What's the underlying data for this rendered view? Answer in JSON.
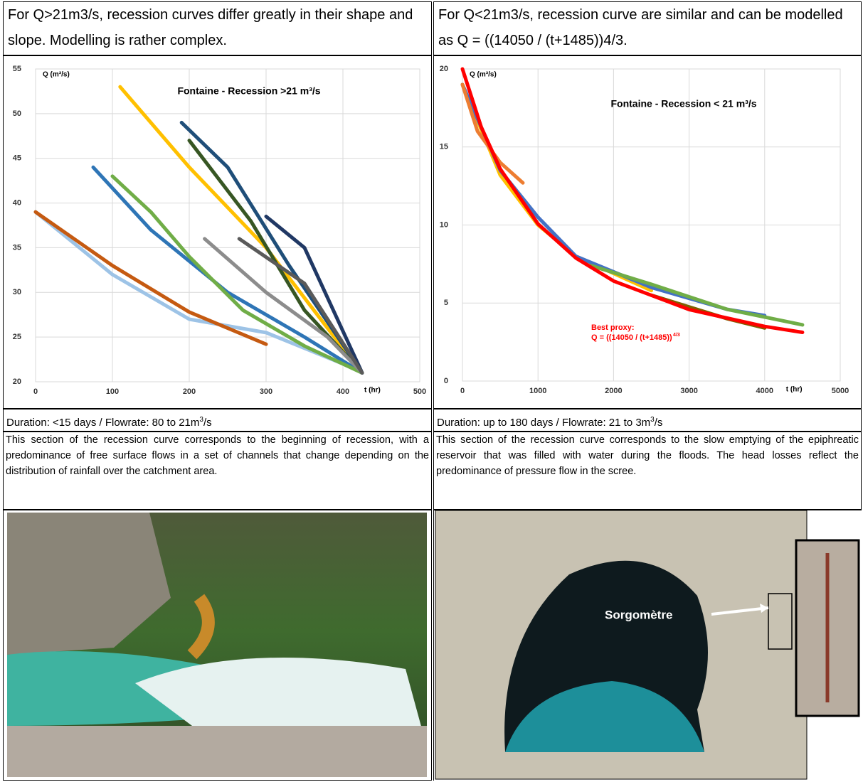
{
  "header": {
    "left": "For Q>21m3/s, recession curves differ greatly in their shape and slope. Modelling is rather complex.",
    "right": "For Q<21m3/s, recession curve are similar and can be modelled as Q = ((14050 / (t+1485))4/3."
  },
  "chart_data": [
    {
      "type": "line",
      "title": "Fontaine -  Recession >21 m³/s",
      "y_label": "Q (m³/s)",
      "x_label": "t (hr)",
      "xlim": [
        0,
        500
      ],
      "xticks": [
        0,
        100,
        200,
        300,
        400,
        500
      ],
      "ylim": [
        20,
        55
      ],
      "yticks": [
        20,
        25,
        30,
        35,
        40,
        45,
        50,
        55
      ],
      "grid": true,
      "series": [
        {
          "color": "#9dc3e6",
          "x": [
            0,
            100,
            200,
            300,
            400,
            425
          ],
          "values": [
            39,
            32,
            27,
            25.5,
            22,
            21
          ]
        },
        {
          "color": "#c55a11",
          "x": [
            0,
            100,
            200,
            300
          ],
          "values": [
            39,
            33,
            27.8,
            24.2
          ]
        },
        {
          "color": "#2e75b6",
          "x": [
            75,
            150,
            250,
            350,
            425
          ],
          "values": [
            44,
            37,
            30,
            25,
            21
          ]
        },
        {
          "color": "#70ad47",
          "x": [
            100,
            150,
            200,
            270,
            350,
            425
          ],
          "values": [
            43,
            39,
            34,
            28,
            24,
            21
          ]
        },
        {
          "color": "#ffc000",
          "x": [
            110,
            200,
            300,
            380,
            425
          ],
          "values": [
            53,
            44,
            35,
            26,
            21
          ]
        },
        {
          "color": "#1f4e79",
          "x": [
            190,
            250,
            330,
            425
          ],
          "values": [
            49,
            44,
            33,
            21
          ]
        },
        {
          "color": "#375623",
          "x": [
            200,
            280,
            350,
            425
          ],
          "values": [
            47,
            38,
            28,
            21
          ]
        },
        {
          "color": "#8c8c8c",
          "x": [
            220,
            300,
            380,
            425
          ],
          "values": [
            36,
            30,
            25,
            21
          ]
        },
        {
          "color": "#203864",
          "x": [
            300,
            350,
            425
          ],
          "values": [
            38.5,
            35,
            21
          ]
        },
        {
          "color": "#5a5a5a",
          "x": [
            265,
            350,
            425
          ],
          "values": [
            36,
            31,
            21
          ]
        }
      ]
    },
    {
      "type": "line",
      "title": "Fontaine - Recession < 21 m³/s",
      "y_label": "Q (m³/s)",
      "x_label": "t (hr)",
      "xlim": [
        0,
        5000
      ],
      "xticks": [
        0,
        1000,
        2000,
        3000,
        4000,
        5000
      ],
      "ylim": [
        0,
        20
      ],
      "yticks": [
        0,
        5,
        10,
        15,
        20
      ],
      "grid": true,
      "annotation": {
        "lines": [
          "Best proxy:",
          "Q = ((14050 / (t+1485))"
        ],
        "superscript": "4/3",
        "color": "#ff0000"
      },
      "series": [
        {
          "color": "#ffc000",
          "x": [
            0,
            500,
            1000,
            1500,
            2500
          ],
          "values": [
            19,
            13.2,
            10,
            8,
            5.8
          ]
        },
        {
          "color": "#4472c4",
          "x": [
            0,
            500,
            1000,
            1500,
            2500,
            3500,
            4000
          ],
          "values": [
            19,
            13.5,
            10.5,
            8,
            6,
            4.6,
            4.2
          ]
        },
        {
          "color": "#70ad47",
          "x": [
            1700,
            2500,
            3500,
            4500
          ],
          "values": [
            7.4,
            6.2,
            4.6,
            3.6
          ]
        },
        {
          "color": "#7f6000",
          "x": [
            2500,
            3500,
            4000
          ],
          "values": [
            5.5,
            4,
            3.4
          ]
        },
        {
          "color": "#ed7d31",
          "x": [
            0,
            200,
            500,
            800
          ],
          "values": [
            19,
            16,
            14,
            12.7
          ]
        },
        {
          "color": "#ff0000",
          "x": [
            0,
            250,
            500,
            1000,
            1500,
            2000,
            3000,
            4000,
            4500
          ],
          "values": [
            20,
            16.26,
            13.59,
            10.07,
            7.89,
            6.41,
            4.58,
            3.5,
            3.12
          ]
        }
      ]
    }
  ],
  "captions": {
    "left": {
      "text": "Duration: <15 days / Flowrate: 80 to 21m",
      "sup": "3",
      "tail": "/s"
    },
    "right": {
      "text": "Duration: up to 180 days / Flowrate: 21 to 3m",
      "sup": "3",
      "tail": "/s"
    }
  },
  "paragraphs": {
    "left": "This section of the recession curve corresponds to the beginning of recession, with a predominance of free surface flows in a set of channels that change depending on the distribution of rainfall over the catchment area.",
    "right": "This section of the recession curve corresponds to the slow emptying of the epiphreatic reservoir that was filled with water during the floods. The head losses reflect the predominance of pressure flow in the scree."
  },
  "photo_label": "Sorgomètre"
}
